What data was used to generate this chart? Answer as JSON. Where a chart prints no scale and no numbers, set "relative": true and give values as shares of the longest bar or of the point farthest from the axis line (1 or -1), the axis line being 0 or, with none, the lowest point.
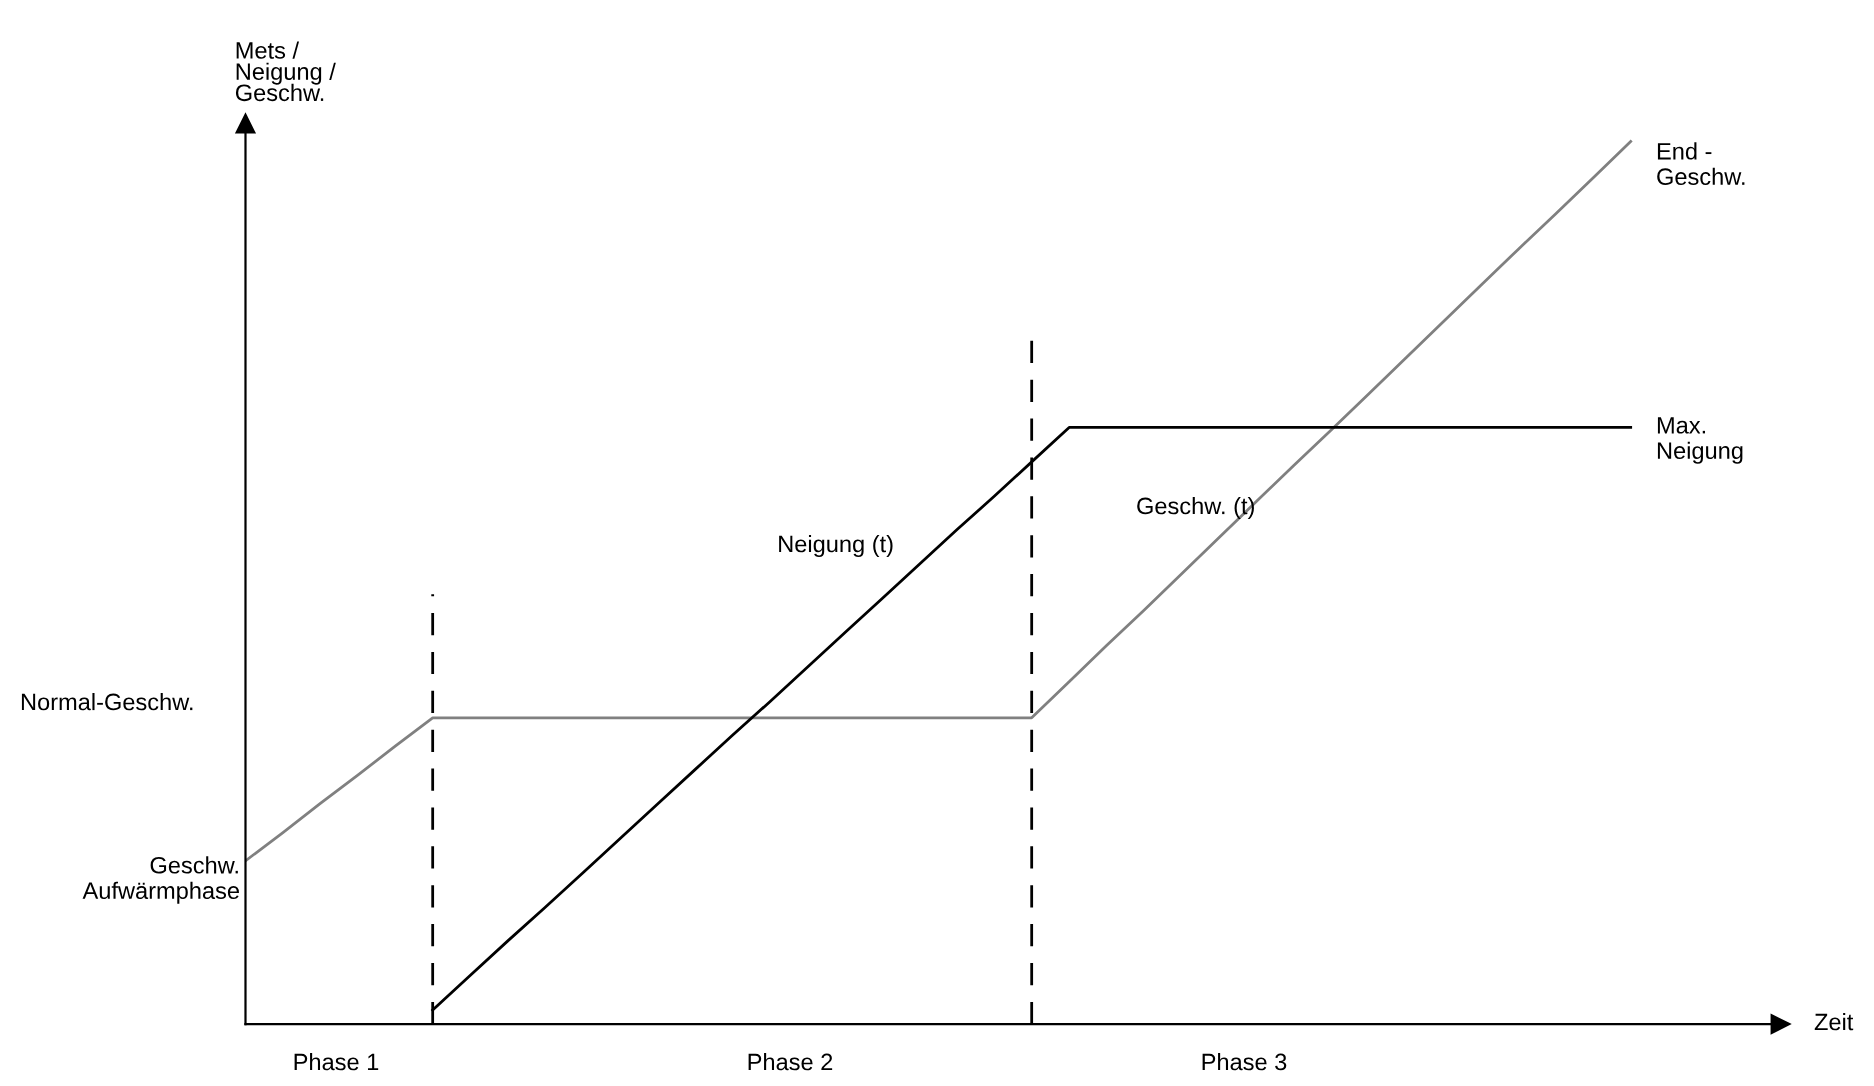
{
  "chart_data": {
    "type": "line",
    "relative": true,
    "ylabel": "Mets /\nNeigung /\nGeschw.",
    "categories": [
      null,
      null,
      null,
      null,
      null,
      null,
      null,
      null,
      null,
      null,
      null,
      null,
      null,
      null,
      null,
      null,
      null,
      null,
      null,
      null,
      null,
      null,
      null,
      null,
      null,
      null,
      null,
      null,
      null,
      null,
      null,
      null,
      null,
      null,
      null,
      null,
      null,
      null
    ],
    "series": [
      {
        "name": "Geschw. (t)",
        "color": "#808080",
        "values": [
          0.185,
          0.217,
          0.25,
          0.282,
          0.315,
          0.347,
          0.347,
          0.347,
          0.347,
          0.347,
          0.347,
          0.347,
          0.347,
          0.347,
          0.347,
          0.347,
          0.347,
          0.347,
          0.347,
          0.347,
          0.347,
          0.347,
          0.388,
          0.429,
          0.469,
          0.51,
          0.551,
          0.592,
          0.633,
          0.673,
          0.714,
          0.755,
          0.796,
          0.837,
          0.878,
          0.918,
          0.959,
          1.0
        ]
      },
      {
        "name": "Neigung (t)",
        "color": "#000000",
        "values": [
          null,
          null,
          null,
          null,
          null,
          0.016,
          0.055,
          0.094,
          0.132,
          0.171,
          0.21,
          0.249,
          0.288,
          0.327,
          0.365,
          0.404,
          0.443,
          0.482,
          0.521,
          0.56,
          0.598,
          0.637,
          0.676,
          0.676,
          0.676,
          0.676,
          0.676,
          0.676,
          0.676,
          0.676,
          0.676,
          0.676,
          0.676,
          0.676,
          0.676,
          0.676,
          0.676,
          0.676
        ]
      }
    ],
    "annotations": [
      "Phase 1",
      "Phase 2",
      "Phase 3",
      "Normal-Geschw.",
      "Geschw.\nAufwärmphase",
      "End -\nGeschw.",
      "Max.\nNeigung",
      "Zeit"
    ],
    "grid": false,
    "legend": false,
    "marker": "none",
    "line_style": "solid"
  }
}
